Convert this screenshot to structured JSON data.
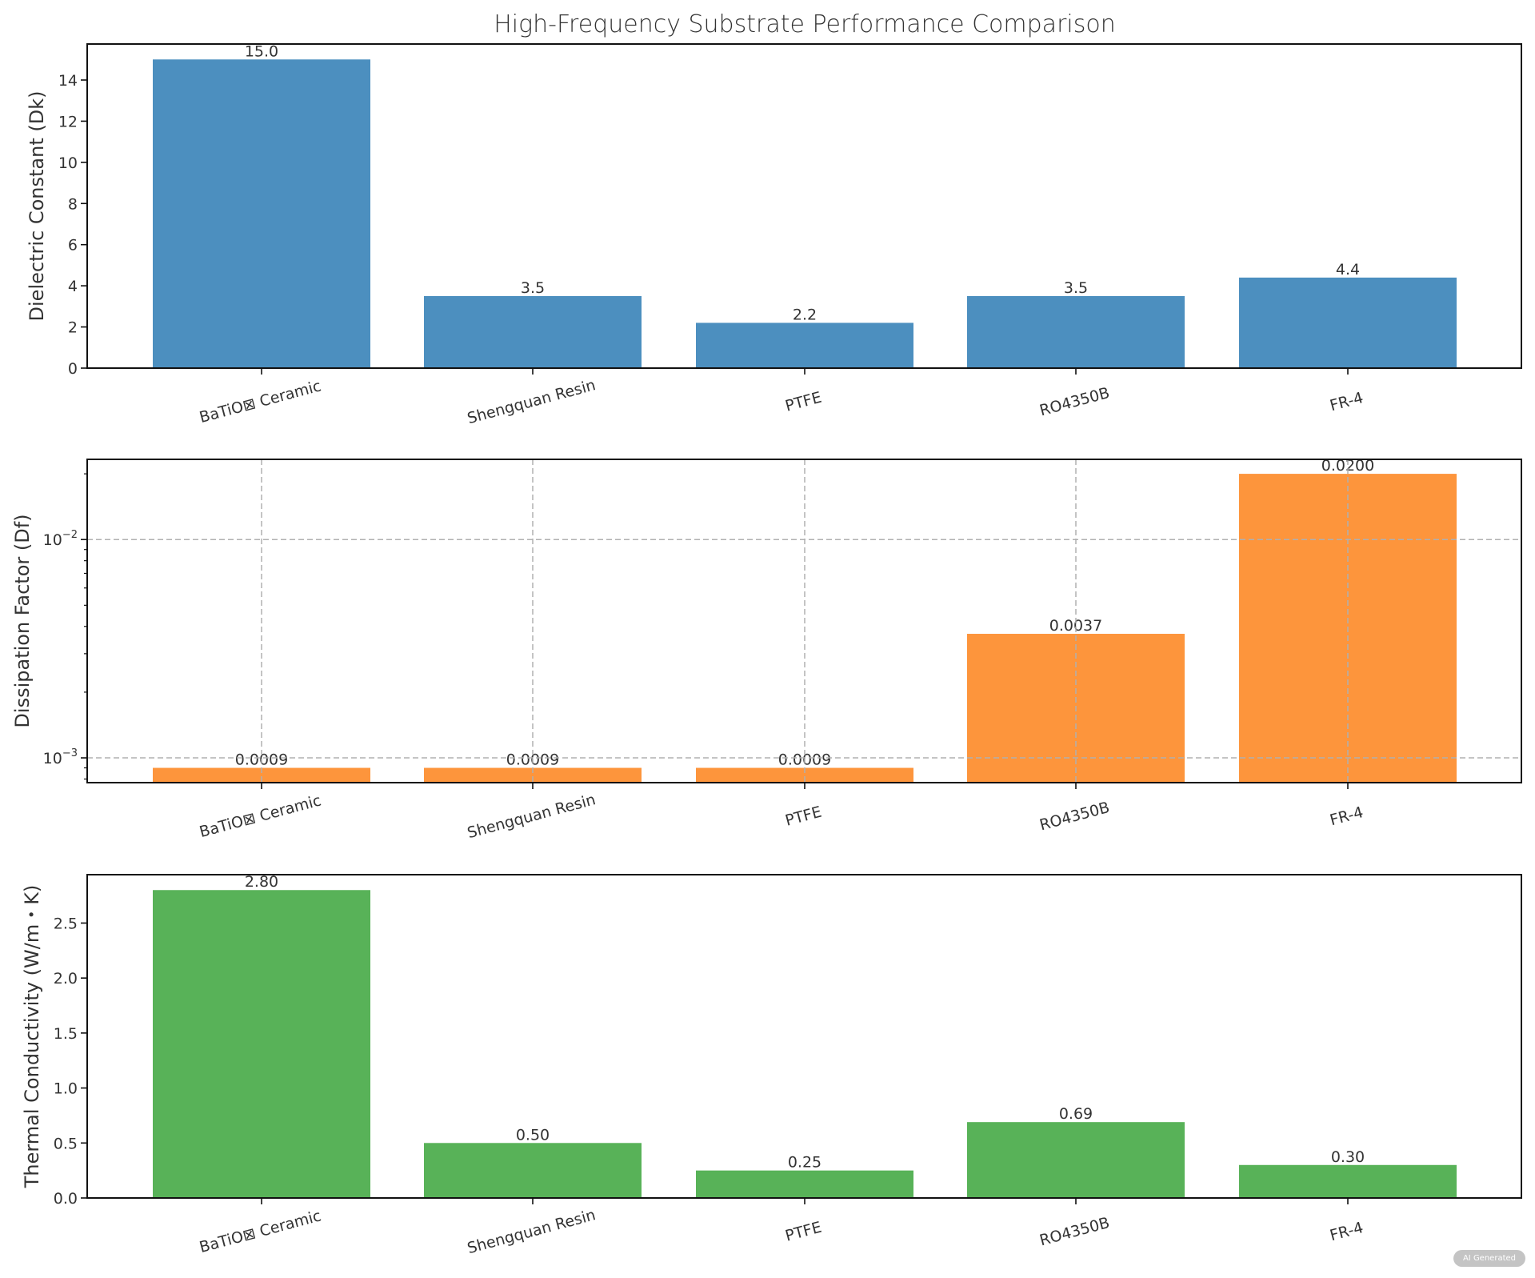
{
  "title": "High-Frequency Substrate Performance Comparison",
  "watermark": "AI Generated",
  "chart_data": [
    {
      "type": "bar",
      "categories": [
        "BaTiO⊠ Ceramic",
        "Shengquan Resin",
        "PTFE",
        "RO4350B",
        "FR-4"
      ],
      "values": [
        15.0,
        3.5,
        2.2,
        3.5,
        4.4
      ],
      "value_labels": [
        "15.0",
        "3.5",
        "2.2",
        "3.5",
        "4.4"
      ],
      "ylabel": "Dielectric Constant (Dk)",
      "ylim": [
        0,
        15.75
      ],
      "yticks": [
        0,
        2,
        4,
        6,
        8,
        10,
        12,
        14
      ],
      "yscale": "linear",
      "grid": false,
      "color": "#4c8fbf"
    },
    {
      "type": "bar",
      "categories": [
        "BaTiO⊠ Ceramic",
        "Shengquan Resin",
        "PTFE",
        "RO4350B",
        "FR-4"
      ],
      "values": [
        0.0009,
        0.0009,
        0.0009,
        0.0037,
        0.02
      ],
      "value_labels": [
        "0.0009",
        "0.0009",
        "0.0009",
        "0.0037",
        "0.0200"
      ],
      "ylabel": "Dissipation Factor (Df)",
      "ylim": [
        0.00077,
        0.0233
      ],
      "yticks": [
        0.001,
        0.01
      ],
      "ytick_labels": [
        {
          "base": "10",
          "exp": "−3"
        },
        {
          "base": "10",
          "exp": "−2"
        }
      ],
      "yscale": "log",
      "grid": true,
      "color": "#fd953c"
    },
    {
      "type": "bar",
      "categories": [
        "BaTiO⊠ Ceramic",
        "Shengquan Resin",
        "PTFE",
        "RO4350B",
        "FR-4"
      ],
      "values": [
        2.8,
        0.5,
        0.25,
        0.69,
        0.3
      ],
      "value_labels": [
        "2.80",
        "0.50",
        "0.25",
        "0.69",
        "0.30"
      ],
      "ylabel": "Thermal Conductivity (W/m・K)",
      "ylim": [
        0,
        2.94
      ],
      "yticks": [
        0.0,
        0.5,
        1.0,
        1.5,
        2.0,
        2.5
      ],
      "ytick_labels": [
        "0.0",
        "0.5",
        "1.0",
        "1.5",
        "2.0",
        "2.5"
      ],
      "yscale": "linear",
      "grid": false,
      "color": "#58b258"
    }
  ]
}
